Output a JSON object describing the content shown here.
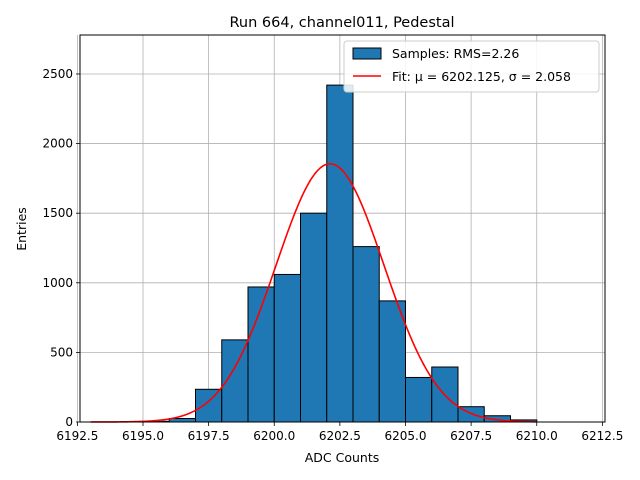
{
  "chart_data": {
    "type": "bar",
    "title": "Run 664, channel011, Pedestal",
    "xlabel": "ADC Counts",
    "ylabel": "Entries",
    "xlim": [
      6192.6,
      6212.6
    ],
    "ylim": [
      0,
      2780
    ],
    "grid": true,
    "legend_position": "top-right",
    "x_ticks": [
      6192.5,
      6195.0,
      6197.5,
      6200.0,
      6202.5,
      6205.0,
      6207.5,
      6210.0,
      6212.5
    ],
    "x_tick_labels": [
      "6192.5",
      "6195.0",
      "6197.5",
      "6200.0",
      "6202.5",
      "6205.0",
      "6207.5",
      "6210.0",
      "6212.5"
    ],
    "y_ticks": [
      0,
      500,
      1000,
      1500,
      2000,
      2500
    ],
    "y_tick_labels": [
      "0",
      "500",
      "1000",
      "1500",
      "2000",
      "2500"
    ],
    "series": [
      {
        "name": "Samples: RMS=2.26",
        "kind": "histogram",
        "color": "#1f77b4",
        "edgecolor": "#000000",
        "bins": [
          {
            "x0": 6195,
            "x1": 6196,
            "value": 5
          },
          {
            "x0": 6196,
            "x1": 6197,
            "value": 25
          },
          {
            "x0": 6197,
            "x1": 6198,
            "value": 235
          },
          {
            "x0": 6198,
            "x1": 6199,
            "value": 590
          },
          {
            "x0": 6199,
            "x1": 6200,
            "value": 970
          },
          {
            "x0": 6200,
            "x1": 6201,
            "value": 1060
          },
          {
            "x0": 6201,
            "x1": 6202,
            "value": 1500
          },
          {
            "x0": 6202,
            "x1": 6203,
            "value": 2420
          },
          {
            "x0": 6203,
            "x1": 6204,
            "value": 1260
          },
          {
            "x0": 6204,
            "x1": 6205,
            "value": 870
          },
          {
            "x0": 6205,
            "x1": 6206,
            "value": 320
          },
          {
            "x0": 6206,
            "x1": 6207,
            "value": 395
          },
          {
            "x0": 6207,
            "x1": 6208,
            "value": 110
          },
          {
            "x0": 6208,
            "x1": 6209,
            "value": 45
          },
          {
            "x0": 6209,
            "x1": 6210,
            "value": 15
          }
        ]
      },
      {
        "name": "Fit: μ = 6202.125, σ = 2.058",
        "kind": "gaussian-fit",
        "color": "#ff0000",
        "mu": 6202.125,
        "sigma": 2.058,
        "amplitude": 1855,
        "x_range": [
          6193,
          6210
        ]
      }
    ]
  }
}
